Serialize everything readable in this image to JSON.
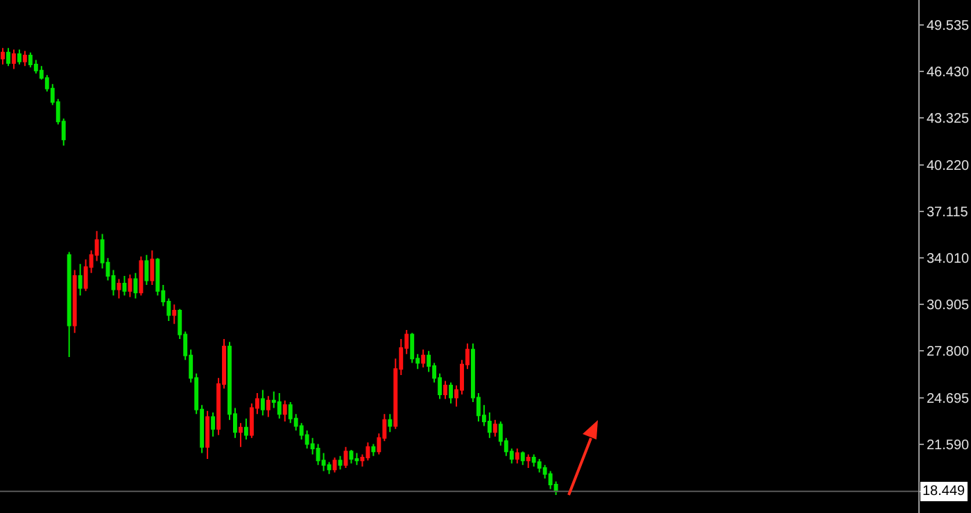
{
  "chart_data": {
    "type": "candlestick",
    "categories": [
      null,
      null,
      null,
      null,
      null,
      null,
      null,
      null,
      null,
      null,
      null,
      null,
      null,
      null,
      null,
      null,
      null,
      null,
      null,
      null,
      null,
      null,
      null,
      null,
      null,
      null,
      null,
      null,
      null,
      null,
      null,
      null,
      null,
      null,
      null,
      null,
      null,
      null,
      null,
      null,
      null,
      null,
      null,
      null,
      null,
      null,
      null,
      null,
      null,
      null,
      null,
      null,
      null,
      null,
      null,
      null,
      null,
      null,
      null,
      null,
      null,
      null,
      null,
      null,
      null,
      null,
      null,
      null,
      null,
      null,
      null,
      null,
      null,
      null,
      null,
      null,
      null,
      null,
      null,
      null,
      null,
      null,
      null,
      null,
      null,
      null,
      null,
      null,
      null,
      null,
      null,
      null,
      null,
      null,
      null,
      null,
      null,
      null,
      null,
      null,
      null,
      null,
      null,
      null,
      null,
      null,
      null,
      null,
      null,
      null,
      null,
      null,
      null,
      null,
      null,
      null,
      null,
      null,
      null,
      null,
      null,
      null,
      null,
      null,
      null,
      null,
      null,
      null,
      null,
      null,
      null,
      null,
      null,
      null,
      null,
      null,
      null,
      null,
      null,
      null,
      null,
      null,
      null,
      null,
      null,
      null,
      null,
      null,
      null,
      null,
      null,
      null,
      null,
      null,
      null,
      null,
      null,
      null,
      null,
      null,
      null,
      null,
      null,
      null,
      null,
      null
    ],
    "ohlc": [
      [
        47.3,
        48.0,
        46.9,
        47.7
      ],
      [
        47.7,
        48.0,
        46.8,
        47.0
      ],
      [
        47.0,
        47.9,
        46.6,
        47.6
      ],
      [
        47.6,
        47.9,
        46.9,
        47.1
      ],
      [
        47.1,
        47.8,
        46.8,
        47.5
      ],
      [
        47.5,
        47.7,
        46.7,
        46.9
      ],
      [
        46.9,
        47.2,
        46.3,
        46.5
      ],
      [
        46.5,
        46.8,
        45.9,
        46.0
      ],
      [
        46.0,
        46.2,
        45.1,
        45.3
      ],
      [
        45.3,
        45.6,
        44.2,
        44.4
      ],
      [
        44.4,
        44.6,
        42.9,
        43.1
      ],
      [
        43.1,
        43.3,
        41.5,
        41.9
      ],
      [
        34.2,
        34.4,
        27.4,
        29.5
      ],
      [
        29.5,
        33.2,
        29.0,
        32.8
      ],
      [
        32.8,
        33.6,
        31.5,
        32.0
      ],
      [
        32.0,
        33.9,
        31.8,
        33.4
      ],
      [
        33.4,
        34.5,
        33.0,
        34.2
      ],
      [
        34.2,
        35.8,
        33.8,
        35.2
      ],
      [
        35.2,
        35.6,
        33.3,
        33.7
      ],
      [
        33.7,
        34.0,
        32.5,
        32.8
      ],
      [
        32.8,
        33.2,
        31.5,
        31.9
      ],
      [
        31.9,
        32.6,
        31.3,
        32.3
      ],
      [
        32.3,
        32.8,
        31.5,
        31.8
      ],
      [
        31.8,
        32.9,
        31.4,
        32.6
      ],
      [
        32.6,
        33.0,
        31.3,
        31.7
      ],
      [
        31.7,
        34.1,
        31.5,
        33.8
      ],
      [
        33.8,
        34.2,
        32.2,
        32.5
      ],
      [
        32.5,
        34.5,
        32.2,
        33.9
      ],
      [
        33.9,
        34.0,
        31.5,
        31.8
      ],
      [
        31.8,
        32.2,
        30.8,
        31.1
      ],
      [
        31.1,
        31.3,
        29.8,
        30.2
      ],
      [
        30.2,
        30.9,
        29.6,
        30.5
      ],
      [
        30.5,
        30.6,
        28.6,
        28.9
      ],
      [
        28.9,
        29.1,
        27.2,
        27.5
      ],
      [
        27.5,
        27.9,
        25.7,
        26.0
      ],
      [
        26.0,
        26.3,
        23.6,
        23.9
      ],
      [
        23.9,
        24.2,
        21.0,
        21.4
      ],
      [
        21.4,
        23.8,
        20.6,
        23.4
      ],
      [
        23.4,
        23.7,
        22.1,
        22.6
      ],
      [
        22.6,
        26.0,
        22.2,
        25.6
      ],
      [
        25.6,
        28.6,
        25.3,
        28.1
      ],
      [
        28.1,
        28.4,
        23.2,
        23.6
      ],
      [
        23.6,
        24.0,
        22.0,
        22.4
      ],
      [
        22.4,
        23.0,
        21.4,
        22.7
      ],
      [
        22.7,
        23.3,
        21.9,
        22.2
      ],
      [
        22.2,
        24.3,
        22.0,
        24.0
      ],
      [
        24.0,
        25.0,
        23.6,
        24.6
      ],
      [
        24.6,
        25.2,
        23.5,
        23.9
      ],
      [
        23.9,
        24.8,
        23.4,
        24.5
      ],
      [
        24.5,
        25.1,
        24.0,
        24.4
      ],
      [
        24.4,
        25.0,
        23.3,
        23.6
      ],
      [
        23.6,
        24.5,
        23.1,
        24.2
      ],
      [
        24.2,
        24.4,
        23.0,
        23.3
      ],
      [
        23.3,
        23.6,
        22.5,
        22.8
      ],
      [
        22.8,
        23.0,
        21.9,
        22.2
      ],
      [
        22.2,
        22.5,
        21.3,
        21.6
      ],
      [
        21.6,
        22.0,
        20.9,
        21.3
      ],
      [
        21.3,
        21.6,
        20.2,
        20.5
      ],
      [
        20.5,
        21.0,
        19.8,
        20.2
      ],
      [
        20.2,
        20.4,
        19.6,
        19.9
      ],
      [
        19.9,
        20.7,
        19.7,
        20.5
      ],
      [
        20.5,
        20.8,
        19.9,
        20.2
      ],
      [
        20.2,
        21.4,
        20.0,
        21.1
      ],
      [
        21.1,
        21.2,
        20.3,
        20.6
      ],
      [
        20.6,
        21.0,
        20.2,
        20.5
      ],
      [
        20.5,
        20.9,
        20.1,
        20.7
      ],
      [
        20.7,
        21.7,
        20.5,
        21.4
      ],
      [
        21.4,
        21.6,
        20.8,
        21.1
      ],
      [
        21.1,
        22.3,
        20.9,
        22.0
      ],
      [
        22.0,
        23.6,
        21.8,
        23.2
      ],
      [
        23.2,
        23.6,
        22.4,
        22.8
      ],
      [
        22.8,
        27.3,
        22.6,
        26.6
      ],
      [
        26.6,
        28.6,
        26.2,
        28.0
      ],
      [
        28.0,
        29.2,
        27.6,
        28.9
      ],
      [
        28.9,
        29.0,
        27.0,
        27.3
      ],
      [
        27.3,
        27.6,
        26.6,
        27.0
      ],
      [
        27.0,
        27.9,
        26.7,
        27.5
      ],
      [
        27.5,
        27.8,
        26.4,
        26.8
      ],
      [
        26.8,
        27.0,
        25.7,
        26.0
      ],
      [
        26.0,
        26.3,
        24.6,
        24.9
      ],
      [
        24.9,
        25.8,
        24.6,
        25.5
      ],
      [
        25.5,
        25.7,
        24.3,
        24.7
      ],
      [
        24.7,
        25.5,
        24.1,
        25.2
      ],
      [
        25.2,
        27.2,
        24.9,
        26.9
      ],
      [
        26.9,
        28.3,
        26.6,
        27.9
      ],
      [
        27.9,
        28.3,
        24.4,
        24.7
      ],
      [
        24.7,
        25.0,
        23.1,
        23.5
      ],
      [
        23.5,
        24.2,
        22.8,
        23.1
      ],
      [
        23.1,
        23.7,
        22.0,
        22.4
      ],
      [
        22.4,
        23.2,
        22.1,
        22.9
      ],
      [
        22.9,
        23.1,
        21.5,
        21.8
      ],
      [
        21.8,
        22.0,
        20.8,
        21.1
      ],
      [
        21.1,
        21.3,
        20.3,
        20.6
      ],
      [
        20.6,
        21.3,
        20.3,
        21.0
      ],
      [
        21.0,
        21.1,
        20.2,
        20.5
      ],
      [
        20.5,
        20.9,
        20.0,
        20.7
      ],
      [
        20.7,
        20.9,
        20.1,
        20.4
      ],
      [
        20.4,
        20.6,
        19.7,
        20.0
      ],
      [
        20.0,
        20.2,
        19.3,
        19.6
      ],
      [
        19.6,
        19.8,
        18.6,
        18.9
      ],
      [
        18.9,
        19.1,
        18.2,
        18.449
      ],
      null,
      null,
      null,
      null,
      null,
      null,
      null,
      null,
      null,
      null,
      null,
      null,
      null,
      null,
      null,
      null,
      null,
      null,
      null,
      null,
      null,
      null,
      null,
      null,
      null,
      null,
      null,
      null,
      null,
      null,
      null,
      null,
      null,
      null,
      null,
      null,
      null,
      null,
      null,
      null,
      null,
      null,
      null,
      null,
      null,
      null,
      null,
      null,
      null,
      null,
      null,
      null,
      null,
      null,
      null,
      null,
      null,
      null,
      null,
      null,
      null,
      null,
      null,
      null,
      null
    ],
    "colors": [
      "#ff1010",
      "#00e400",
      "#ff1010",
      "#00e400",
      "#ff1010",
      "#00e400",
      "#00e400",
      "#00e400",
      "#00e400",
      "#00e400",
      "#00e400",
      "#00e400",
      "#00e400",
      "#ff1010",
      "#00e400",
      "#ff1010",
      "#ff1010",
      "#ff1010",
      "#00e400",
      "#00e400",
      "#00e400",
      "#ff1010",
      "#00e400",
      "#ff1010",
      "#00e400",
      "#ff1010",
      "#00e400",
      "#ff1010",
      "#00e400",
      "#00e400",
      "#00e400",
      "#ff1010",
      "#00e400",
      "#00e400",
      "#00e400",
      "#00e400",
      "#00e400",
      "#ff1010",
      "#00e400",
      "#ff1010",
      "#ff1010",
      "#00e400",
      "#00e400",
      "#ff1010",
      "#00e400",
      "#ff1010",
      "#ff1010",
      "#00e400",
      "#ff1010",
      "#00e400",
      "#00e400",
      "#ff1010",
      "#00e400",
      "#00e400",
      "#00e400",
      "#00e400",
      "#00e400",
      "#00e400",
      "#00e400",
      "#00e400",
      "#ff1010",
      "#00e400",
      "#ff1010",
      "#00e400",
      "#00e400",
      "#ff1010",
      "#ff1010",
      "#00e400",
      "#ff1010",
      "#ff1010",
      "#00e400",
      "#ff1010",
      "#ff1010",
      "#ff1010",
      "#00e400",
      "#00e400",
      "#ff1010",
      "#00e400",
      "#00e400",
      "#00e400",
      "#ff1010",
      "#00e400",
      "#ff1010",
      "#ff1010",
      "#ff1010",
      "#00e400",
      "#00e400",
      "#00e400",
      "#00e400",
      "#ff1010",
      "#00e400",
      "#00e400",
      "#00e400",
      "#ff1010",
      "#00e400",
      "#ff1010",
      "#00e400",
      "#00e400",
      "#00e400",
      "#00e400",
      "#00e400",
      null,
      null,
      null,
      null,
      null,
      null,
      null,
      null,
      null,
      null,
      null,
      null,
      null,
      null,
      null,
      null,
      null,
      null,
      null,
      null,
      null,
      null,
      null,
      null,
      null,
      null,
      null,
      null,
      null,
      null,
      null,
      null,
      null,
      null,
      null,
      null,
      null,
      null,
      null,
      null,
      null,
      null,
      null,
      null,
      null,
      null,
      null,
      null,
      null,
      null,
      null,
      null,
      null,
      null,
      null,
      null,
      null,
      null,
      null,
      null,
      null,
      null,
      null,
      null,
      null
    ],
    "ylim": [
      17.0,
      51.2
    ],
    "yticks": [
      {
        "value": 18.449,
        "label": null
      },
      {
        "value": 21.59,
        "label": "21.590"
      },
      24.695,
      {
        "value": 27.8,
        "label": "27.800"
      },
      30.905,
      {
        "value": 34.01,
        "label": "34.010"
      },
      37.115,
      {
        "value": 40.22,
        "label": "40.220"
      },
      43.325,
      {
        "value": 46.43,
        "label": "46.430"
      },
      49.535
    ],
    "tick_labels": "y",
    "grid": false,
    "ref_lines": [
      {
        "axis": "y",
        "value": 18.449,
        "label": "18.449",
        "color": "#5a5a5a"
      }
    ]
  }
}
